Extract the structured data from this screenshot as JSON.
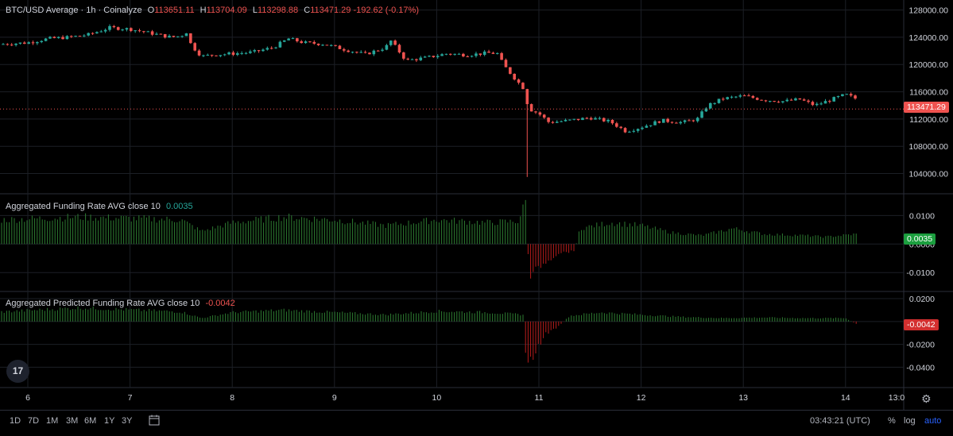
{
  "chart_data": [
    {
      "type": "candlestick",
      "title": "BTC/USD Average · 1h · Coinalyze",
      "ohlc_summary": {
        "O_label": "O",
        "O": "113651.11",
        "H_label": "H",
        "H": "113704.09",
        "L_label": "L",
        "L": "113298.88",
        "C_label": "C",
        "C": "113471.29",
        "change": "-192.62 (-0.17%)"
      },
      "last_price_label": "113471.29",
      "ylim": [
        101500,
        129000
      ],
      "y_ticks": [
        "128000.00",
        "124000.00",
        "120000.00",
        "116000.00",
        "112000.00",
        "108000.00",
        "104000.00"
      ],
      "y_tick_values": [
        128000,
        124000,
        120000,
        116000,
        112000,
        108000,
        104000
      ],
      "x_ticks": [
        "6",
        "7",
        "8",
        "9",
        "10",
        "11",
        "12",
        "13",
        "14",
        "13:0"
      ],
      "close_path_days": [
        [
          5.75,
          123000
        ],
        [
          6.0,
          123200
        ],
        [
          6.2,
          123800
        ],
        [
          6.4,
          124000
        ],
        [
          6.6,
          124400
        ],
        [
          6.8,
          125400
        ],
        [
          7.0,
          125200
        ],
        [
          7.2,
          124600
        ],
        [
          7.4,
          124000
        ],
        [
          7.5,
          124200
        ],
        [
          7.55,
          124800
        ],
        [
          7.6,
          122800
        ],
        [
          7.7,
          121200
        ],
        [
          7.8,
          121400
        ],
        [
          8.0,
          121600
        ],
        [
          8.2,
          121800
        ],
        [
          8.4,
          122500
        ],
        [
          8.55,
          123800
        ],
        [
          8.7,
          123200
        ],
        [
          8.9,
          123000
        ],
        [
          9.1,
          122200
        ],
        [
          9.3,
          121500
        ],
        [
          9.5,
          122500
        ],
        [
          9.55,
          123500
        ],
        [
          9.7,
          120600
        ],
        [
          9.9,
          121000
        ],
        [
          10.1,
          121600
        ],
        [
          10.3,
          121400
        ],
        [
          10.5,
          121700
        ],
        [
          10.6,
          121600
        ],
        [
          10.65,
          120000
        ],
        [
          10.75,
          118200
        ],
        [
          10.85,
          116500
        ],
        [
          10.9,
          113500
        ],
        [
          11.0,
          112800
        ],
        [
          11.1,
          111500
        ],
        [
          11.3,
          111800
        ],
        [
          11.5,
          112200
        ],
        [
          11.7,
          111600
        ],
        [
          11.85,
          110200
        ],
        [
          12.0,
          110800
        ],
        [
          12.2,
          111800
        ],
        [
          12.4,
          111500
        ],
        [
          12.55,
          112000
        ],
        [
          12.65,
          114000
        ],
        [
          12.8,
          115000
        ],
        [
          13.0,
          115400
        ],
        [
          13.2,
          114800
        ],
        [
          13.4,
          114600
        ],
        [
          13.55,
          114900
        ],
        [
          13.7,
          114000
        ],
        [
          13.85,
          114800
        ],
        [
          14.0,
          115600
        ],
        [
          14.1,
          115000
        ],
        [
          14.15,
          113471
        ]
      ],
      "wick_low": {
        "day": 10.9,
        "value": 103500
      }
    },
    {
      "type": "bar",
      "title": "Aggregated Funding Rate AVG close 10",
      "last_value": "0.0035",
      "ylim": [
        -0.0155,
        0.0165
      ],
      "y_ticks": [
        "0.0100",
        "0.0000",
        "-0.0100"
      ],
      "y_tick_values": [
        0.01,
        0.0,
        -0.01
      ],
      "profile_days": [
        [
          5.75,
          0.0085
        ],
        [
          6.5,
          0.0095
        ],
        [
          7.5,
          0.0085
        ],
        [
          7.7,
          0.0045
        ],
        [
          8.0,
          0.0075
        ],
        [
          8.5,
          0.0095
        ],
        [
          9.0,
          0.0085
        ],
        [
          9.5,
          0.0065
        ],
        [
          10.0,
          0.0085
        ],
        [
          10.5,
          0.0075
        ],
        [
          10.8,
          0.008
        ],
        [
          10.88,
          0.016
        ],
        [
          10.9,
          -0.012
        ],
        [
          11.0,
          -0.008
        ],
        [
          11.2,
          -0.003
        ],
        [
          11.35,
          -0.0025
        ],
        [
          11.4,
          0.0055
        ],
        [
          11.7,
          0.0075
        ],
        [
          12.0,
          0.0065
        ],
        [
          12.3,
          0.004
        ],
        [
          12.6,
          0.003
        ],
        [
          12.9,
          0.0055
        ],
        [
          13.2,
          0.0035
        ],
        [
          13.6,
          0.003
        ],
        [
          13.8,
          0.0025
        ],
        [
          14.1,
          0.0035
        ]
      ]
    },
    {
      "type": "bar",
      "title": "Aggregated Predicted Funding Rate AVG close 10",
      "last_value": "-0.0042",
      "ylim": [
        -0.055,
        0.0235
      ],
      "y_ticks": [
        "0.0200",
        "0.0000",
        "-0.0200",
        "-0.0400"
      ],
      "y_tick_values": [
        0.02,
        0.0,
        -0.02,
        -0.04
      ],
      "profile_days": [
        [
          5.75,
          0.0085
        ],
        [
          6.5,
          0.012
        ],
        [
          7.5,
          0.0085
        ],
        [
          7.7,
          0.003
        ],
        [
          8.0,
          0.008
        ],
        [
          8.5,
          0.01
        ],
        [
          9.0,
          0.008
        ],
        [
          9.5,
          0.006
        ],
        [
          10.0,
          0.009
        ],
        [
          10.5,
          0.008
        ],
        [
          10.85,
          0.006
        ],
        [
          10.88,
          -0.042
        ],
        [
          10.95,
          -0.03
        ],
        [
          11.05,
          -0.012
        ],
        [
          11.2,
          -0.004
        ],
        [
          11.3,
          0.005
        ],
        [
          11.6,
          0.008
        ],
        [
          12.0,
          0.006
        ],
        [
          12.4,
          0.004
        ],
        [
          12.8,
          0.003
        ],
        [
          13.2,
          0.0035
        ],
        [
          13.6,
          0.003
        ],
        [
          14.0,
          0.003
        ],
        [
          14.15,
          -0.0042
        ]
      ]
    }
  ],
  "toolbar": {
    "timeframes": [
      "1D",
      "7D",
      "1M",
      "3M",
      "6M",
      "1Y",
      "3Y"
    ],
    "clock": "03:43:21 (UTC)",
    "percent": "%",
    "log": "log",
    "auto": "auto"
  },
  "logo_text": "17",
  "colors": {
    "up": "#26a69a",
    "down": "#ef5350",
    "grid": "#1c1f26",
    "axis_text": "#d1d4dc",
    "bar_positive": "#2e7d32",
    "bar_negative": "#b71c1c"
  }
}
